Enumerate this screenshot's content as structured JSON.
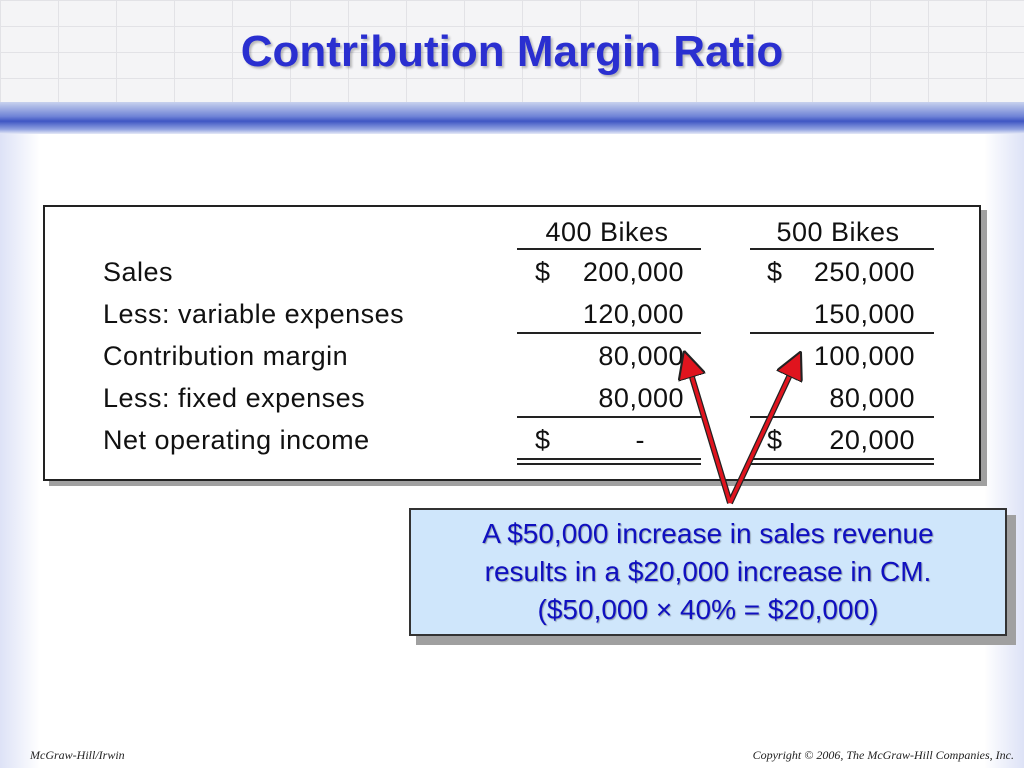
{
  "slide": {
    "title": "Contribution Margin Ratio"
  },
  "table": {
    "headers": [
      "400 Bikes",
      "500 Bikes"
    ],
    "rows": [
      {
        "label": "Sales",
        "c1_sym": "$",
        "c1": "200,000",
        "c2_sym": "$",
        "c2": "250,000"
      },
      {
        "label": "Less: variable expenses",
        "c1_sym": "",
        "c1": "120,000",
        "c2_sym": "",
        "c2": "150,000"
      },
      {
        "label": "Contribution margin",
        "c1_sym": "",
        "c1": "80,000",
        "c2_sym": "",
        "c2": "100,000"
      },
      {
        "label": "Less: fixed expenses",
        "c1_sym": "",
        "c1": "80,000",
        "c2_sym": "",
        "c2": "80,000"
      },
      {
        "label": "Net operating income",
        "c1_sym": "$",
        "c1": "-",
        "c2_sym": "$",
        "c2": "20,000"
      }
    ]
  },
  "callout": {
    "lines": [
      "A $50,000 increase in sales revenue",
      "results in a $20,000 increase in CM.",
      "($50,000 × 40% = $20,000)"
    ]
  },
  "footer": {
    "left": "McGraw-Hill/Irwin",
    "right": "Copyright © 2006, The McGraw-Hill Companies, Inc."
  },
  "colors": {
    "title": "#2a2fd0",
    "callout_bg": "#cfe6fb",
    "callout_text": "#1010c0",
    "arrow": "#e0141e"
  }
}
